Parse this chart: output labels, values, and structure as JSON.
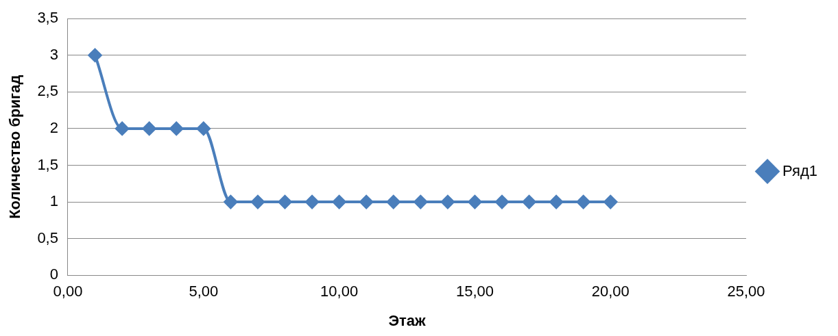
{
  "chart_data": {
    "type": "line",
    "xlabel": "Этаж",
    "ylabel": "Количество бригад",
    "series": [
      {
        "name": "Ряд1",
        "color": "#4a7ebb",
        "x": [
          1,
          2,
          3,
          4,
          5,
          6,
          7,
          8,
          9,
          10,
          11,
          12,
          13,
          14,
          15,
          16,
          17,
          18,
          19,
          20
        ],
        "values": [
          3,
          2,
          2,
          2,
          2,
          1,
          1,
          1,
          1,
          1,
          1,
          1,
          1,
          1,
          1,
          1,
          1,
          1,
          1,
          1
        ]
      }
    ],
    "xlim": [
      0,
      25
    ],
    "xticks": [
      {
        "value": 0,
        "label": "0,00"
      },
      {
        "value": 5,
        "label": "5,00"
      },
      {
        "value": 10,
        "label": "10,00"
      },
      {
        "value": 15,
        "label": "15,00"
      },
      {
        "value": 20,
        "label": "20,00"
      },
      {
        "value": 25,
        "label": "25,00"
      }
    ],
    "ylim": [
      0,
      3.5
    ],
    "yticks": [
      0,
      {
        "value": 0.5,
        "label": "0,5"
      },
      1,
      {
        "value": 1.5,
        "label": "1,5"
      },
      2,
      {
        "value": 2.5,
        "label": "2,5"
      },
      3,
      {
        "value": 3.5,
        "label": "3,5"
      }
    ],
    "grid": "y",
    "legend": "right",
    "marker": "diamond",
    "line_style": "solid"
  }
}
